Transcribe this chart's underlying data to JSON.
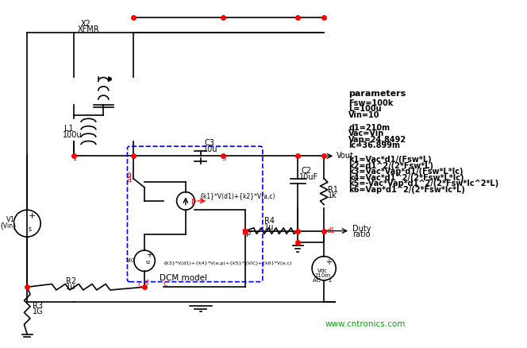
{
  "bg_color": "#ffffff",
  "line_color": "#000000",
  "red_color": "#ff0000",
  "blue_dashed_color": "#0000ff",
  "green_color": "#00aa00",
  "parameters_title": "parameters",
  "parameters_lines": [
    "Fsw=100k",
    "L=100u",
    "Vin=10",
    "",
    "d1=210m",
    "Vac=Vin",
    "Vap=24.8492",
    "Ic=36.899m",
    "",
    "k1=Vac*d1/(Fsw*L)",
    "k2=d1^2/(2*Fsw*L)",
    "k3=Vac*Vap*d1/(Fsw*L*Ic)",
    "k4=Vac*d1^2/(2*Fsw*L*Ic)",
    "k5=-Vac*Vap*d1^2/(2*Fsw*Ic^2*L)",
    "k6=Vap*d1^2/(2*Fsw*Ic*L)"
  ],
  "website": "www.cntronics.com"
}
